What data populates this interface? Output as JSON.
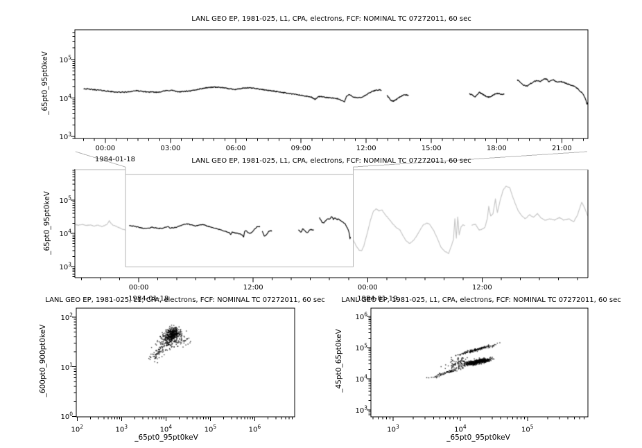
{
  "colors": {
    "data": "#000000",
    "context_data": "#c4c4c4",
    "zoom_box": "#b3b3b3",
    "frame": "#000000",
    "background": "#ffffff"
  },
  "chart_data": [
    {
      "id": "top_timeseries",
      "type": "line",
      "title": "LANL GEO EP, 1981-025, L1, CPA, electrons, FCF: NOMINAL TC 07272011, 60 sec",
      "ylabel": "_65pt0_95pt0keV",
      "y_scale": "log",
      "y_range_exp": [
        2.95,
        5.77
      ],
      "y_major_ticks_exp": [
        3,
        4,
        5
      ],
      "x_scale": "time",
      "x_range_hours": [
        -1.4,
        22.2
      ],
      "x_minor_step_hours": 0.5,
      "x_major_ticks": [
        {
          "hour": 0,
          "label": "00:00",
          "date": "1984-01-18"
        },
        {
          "hour": 3,
          "label": "03:00"
        },
        {
          "hour": 6,
          "label": "06:00"
        },
        {
          "hour": 9,
          "label": "09:00"
        },
        {
          "hour": 12,
          "label": "12:00"
        },
        {
          "hour": 15,
          "label": "15:00"
        },
        {
          "hour": 18,
          "label": "18:00"
        },
        {
          "hour": 21,
          "label": "21:00"
        }
      ],
      "sample_step_hours": 0.02,
      "jitter_log": 0.013,
      "segments": [
        [
          [
            -1.0,
            4.245
          ],
          [
            -0.6,
            4.22
          ],
          [
            -0.2,
            4.2
          ],
          [
            0.2,
            4.17
          ],
          [
            0.6,
            4.15
          ],
          [
            1.0,
            4.155
          ],
          [
            1.4,
            4.19
          ],
          [
            1.7,
            4.17
          ],
          [
            2.0,
            4.155
          ],
          [
            2.4,
            4.15
          ],
          [
            2.8,
            4.19
          ],
          [
            3.1,
            4.2
          ],
          [
            3.3,
            4.16
          ],
          [
            3.6,
            4.17
          ],
          [
            3.9,
            4.18
          ],
          [
            4.3,
            4.23
          ],
          [
            4.7,
            4.27
          ],
          [
            5.0,
            4.285
          ],
          [
            5.3,
            4.275
          ],
          [
            5.7,
            4.24
          ],
          [
            6.0,
            4.225
          ],
          [
            6.3,
            4.25
          ],
          [
            6.6,
            4.265
          ],
          [
            6.9,
            4.25
          ],
          [
            7.2,
            4.22
          ],
          [
            7.6,
            4.19
          ],
          [
            8.0,
            4.16
          ],
          [
            8.4,
            4.12
          ],
          [
            8.8,
            4.09
          ],
          [
            9.2,
            4.05
          ],
          [
            9.5,
            4.02
          ],
          [
            9.65,
            3.96
          ],
          [
            9.8,
            4.04
          ],
          [
            10.1,
            4.02
          ],
          [
            10.4,
            4.0
          ],
          [
            10.7,
            3.98
          ],
          [
            10.9,
            3.93
          ],
          [
            11.0,
            3.9
          ],
          [
            11.1,
            4.05
          ],
          [
            11.25,
            4.09
          ],
          [
            11.4,
            4.03
          ],
          [
            11.6,
            4.0
          ],
          [
            11.8,
            4.02
          ],
          [
            12.0,
            4.08
          ],
          [
            12.2,
            4.15
          ],
          [
            12.45,
            4.205
          ],
          [
            12.6,
            4.21
          ],
          [
            12.7,
            4.2
          ]
        ],
        [
          [
            12.95,
            4.07
          ],
          [
            13.05,
            4.0
          ],
          [
            13.15,
            3.93
          ],
          [
            13.25,
            3.92
          ],
          [
            13.4,
            3.97
          ],
          [
            13.55,
            4.03
          ],
          [
            13.7,
            4.075
          ],
          [
            13.85,
            4.08
          ],
          [
            13.95,
            4.07
          ]
        ],
        [
          [
            16.75,
            4.11
          ],
          [
            16.9,
            4.07
          ],
          [
            17.0,
            4.03
          ],
          [
            17.1,
            4.08
          ],
          [
            17.2,
            4.15
          ],
          [
            17.35,
            4.1
          ],
          [
            17.5,
            4.05
          ],
          [
            17.65,
            4.02
          ],
          [
            17.8,
            4.06
          ],
          [
            17.95,
            4.11
          ],
          [
            18.1,
            4.12
          ],
          [
            18.25,
            4.09
          ],
          [
            18.35,
            4.11
          ]
        ],
        [
          [
            18.95,
            4.47
          ],
          [
            19.1,
            4.4
          ],
          [
            19.25,
            4.33
          ],
          [
            19.4,
            4.31
          ],
          [
            19.55,
            4.37
          ],
          [
            19.7,
            4.42
          ],
          [
            19.85,
            4.45
          ],
          [
            20.0,
            4.43
          ],
          [
            20.1,
            4.46
          ],
          [
            20.2,
            4.5
          ],
          [
            20.3,
            4.49
          ],
          [
            20.4,
            4.42
          ],
          [
            20.5,
            4.46
          ],
          [
            20.6,
            4.47
          ],
          [
            20.7,
            4.44
          ],
          [
            20.8,
            4.41
          ],
          [
            20.9,
            4.43
          ],
          [
            21.0,
            4.42
          ],
          [
            21.1,
            4.4
          ],
          [
            21.2,
            4.38
          ],
          [
            21.35,
            4.35
          ],
          [
            21.5,
            4.32
          ],
          [
            21.65,
            4.28
          ],
          [
            21.8,
            4.2
          ],
          [
            21.95,
            4.12
          ],
          [
            22.05,
            4.02
          ],
          [
            22.12,
            3.92
          ],
          [
            22.16,
            3.82
          ],
          [
            22.2,
            3.9
          ]
        ]
      ]
    },
    {
      "id": "overview_timeseries",
      "type": "line",
      "title": "LANL GEO EP, 1981-025, L1, CPA, electrons, FCF: NOMINAL TC 07272011, 60 sec",
      "ylabel": "_65pt0_95pt0keV",
      "y_scale": "log",
      "y_range_exp": [
        2.67,
        5.94
      ],
      "y_major_ticks_exp": [
        3,
        4,
        5
      ],
      "x_scale": "time",
      "x_range_hours": [
        -6.7,
        47.1
      ],
      "x_minor_step_hours": 2,
      "x_major_ticks": [
        {
          "hour": 0,
          "label": "00:00",
          "date": "1984-01-18"
        },
        {
          "hour": 12,
          "label": "12:00"
        },
        {
          "hour": 24,
          "label": "00:00",
          "date": "1984-01-19"
        },
        {
          "hour": 36,
          "label": "12:00"
        }
      ],
      "sample_step_hours": 0.05,
      "jitter_log": 0.011,
      "black_series_ref": "top_timeseries",
      "zoom_box": {
        "x_hours": [
          -1.4,
          22.5
        ],
        "y_exp": [
          2.99,
          5.77
        ]
      },
      "context_gray_segments": [
        [
          [
            -6.7,
            4.27
          ],
          [
            -6.3,
            4.25
          ],
          [
            -5.9,
            4.27
          ],
          [
            -5.5,
            4.24
          ],
          [
            -5.1,
            4.26
          ],
          [
            -4.7,
            4.22
          ],
          [
            -4.3,
            4.25
          ],
          [
            -3.9,
            4.21
          ],
          [
            -3.55,
            4.24
          ],
          [
            -3.3,
            4.28
          ],
          [
            -3.1,
            4.38
          ],
          [
            -2.9,
            4.3
          ],
          [
            -2.7,
            4.25
          ],
          [
            -2.4,
            4.22
          ],
          [
            -2.1,
            4.18
          ],
          [
            -1.8,
            4.14
          ],
          [
            -1.5,
            4.11
          ],
          [
            -1.4,
            4.1
          ]
        ],
        [
          [
            22.5,
            3.8
          ],
          [
            22.8,
            3.62
          ],
          [
            23.1,
            3.5
          ],
          [
            23.35,
            3.47
          ],
          [
            23.6,
            3.62
          ],
          [
            23.9,
            3.95
          ],
          [
            24.3,
            4.4
          ],
          [
            24.6,
            4.67
          ],
          [
            24.9,
            4.74
          ],
          [
            25.2,
            4.68
          ],
          [
            25.5,
            4.71
          ],
          [
            25.8,
            4.58
          ],
          [
            26.2,
            4.45
          ],
          [
            26.6,
            4.3
          ],
          [
            27.0,
            4.18
          ],
          [
            27.4,
            4.1
          ],
          [
            27.8,
            3.88
          ],
          [
            28.1,
            3.76
          ],
          [
            28.4,
            3.7
          ],
          [
            28.7,
            3.76
          ],
          [
            29.0,
            3.86
          ],
          [
            29.4,
            4.05
          ],
          [
            29.8,
            4.25
          ],
          [
            30.2,
            4.31
          ],
          [
            30.5,
            4.28
          ],
          [
            30.9,
            4.1
          ],
          [
            31.3,
            3.86
          ],
          [
            31.7,
            3.58
          ],
          [
            32.1,
            3.46
          ],
          [
            32.5,
            3.4
          ],
          [
            32.8,
            3.64
          ],
          [
            33.0,
            3.82
          ],
          [
            33.15,
            4.45
          ],
          [
            33.3,
            3.86
          ],
          [
            33.45,
            4.5
          ],
          [
            33.6,
            3.96
          ],
          [
            33.8,
            4.2
          ],
          [
            34.0,
            4.26
          ],
          [
            34.2,
            4.24
          ]
        ],
        [
          [
            34.9,
            4.25
          ],
          [
            35.3,
            4.28
          ],
          [
            35.7,
            4.1
          ],
          [
            36.0,
            4.13
          ],
          [
            36.3,
            4.18
          ],
          [
            36.55,
            4.45
          ],
          [
            36.7,
            4.81
          ],
          [
            36.9,
            4.52
          ],
          [
            37.15,
            4.6
          ],
          [
            37.4,
            5.04
          ],
          [
            37.6,
            4.62
          ],
          [
            37.9,
            5.0
          ],
          [
            38.2,
            5.3
          ],
          [
            38.5,
            5.42
          ],
          [
            38.9,
            5.38
          ],
          [
            39.2,
            5.12
          ],
          [
            39.5,
            4.88
          ],
          [
            39.8,
            4.68
          ],
          [
            40.1,
            4.55
          ],
          [
            40.5,
            4.44
          ],
          [
            41.0,
            4.56
          ],
          [
            41.4,
            4.48
          ],
          [
            41.8,
            4.6
          ],
          [
            42.2,
            4.46
          ],
          [
            42.6,
            4.4
          ],
          [
            43.1,
            4.44
          ],
          [
            43.6,
            4.4
          ],
          [
            44.1,
            4.48
          ],
          [
            44.6,
            4.4
          ],
          [
            45.1,
            4.44
          ],
          [
            45.6,
            4.35
          ],
          [
            46.0,
            4.55
          ],
          [
            46.25,
            4.77
          ],
          [
            46.45,
            4.94
          ],
          [
            46.7,
            4.8
          ],
          [
            47.0,
            4.58
          ],
          [
            47.1,
            4.52
          ]
        ]
      ]
    },
    {
      "id": "scatter_600_900",
      "type": "scatter",
      "title": "LANL GEO EP, 1981-025, L1, CPA, electrons, FCF: NOMINAL TC 07272011, 60 sec",
      "xlabel": "_65pt0_95pt0keV",
      "ylabel": "_600pt0_900pt0keV",
      "x_scale": "log",
      "y_scale": "log",
      "x_range_exp": [
        1.98,
        6.9
      ],
      "y_range_exp": [
        -0.01,
        2.18
      ],
      "x_major_ticks_exp": [
        2,
        3,
        4,
        5,
        6
      ],
      "y_major_ticks_exp": [
        0,
        1,
        2
      ],
      "clusters": [
        {
          "n": 300,
          "cx": 4.16,
          "cy": 1.67,
          "sx": 0.075,
          "sy": 0.06,
          "rho": 0.15
        },
        {
          "n": 150,
          "cx": 4.08,
          "cy": 1.58,
          "sx": 0.1,
          "sy": 0.075,
          "rho": 0.3
        },
        {
          "n": 100,
          "cx": 4.02,
          "cy": 1.45,
          "sx": 0.13,
          "sy": 0.09,
          "rho": 0.4
        },
        {
          "n": 50,
          "cx": 3.8,
          "cy": 1.24,
          "sx": 0.08,
          "sy": 0.07,
          "rho": 0.5
        },
        {
          "n": 35,
          "cx": 4.42,
          "cy": 1.56,
          "sx": 0.1,
          "sy": 0.08,
          "rho": 0.2
        }
      ]
    },
    {
      "id": "scatter_45_65",
      "type": "scatter",
      "title": "LANL GEO EP, 1981-025, L1, CPA, electrons, FCF: NOMINAL TC 07272011, 60 sec",
      "xlabel": "_65pt0_95pt0keV",
      "ylabel": "_45pt0_65pt0keV",
      "x_scale": "log",
      "y_scale": "log",
      "x_range_exp": [
        2.67,
        5.9
      ],
      "y_range_exp": [
        2.78,
        6.27
      ],
      "x_major_ticks_exp": [
        3,
        4,
        5
      ],
      "y_major_ticks_exp": [
        3,
        4,
        5,
        6
      ],
      "clusters": [
        {
          "n": 430,
          "cx": 4.24,
          "cy": 4.54,
          "sx": 0.09,
          "sy": 0.055,
          "rho": 0.8
        },
        {
          "n": 130,
          "cx": 4.36,
          "cy": 4.57,
          "sx": 0.05,
          "sy": 0.035,
          "rho": 0.5
        },
        {
          "n": 160,
          "cx": 4.25,
          "cy": 4.94,
          "sx": 0.14,
          "sy": 0.085,
          "rho": 0.97
        },
        {
          "n": 90,
          "cx": 3.82,
          "cy": 4.22,
          "sx": 0.12,
          "sy": 0.09,
          "rho": 0.95
        },
        {
          "n": 80,
          "cx": 3.97,
          "cy": 4.52,
          "sx": 0.09,
          "sy": 0.1,
          "rho": 0.5
        }
      ]
    }
  ]
}
